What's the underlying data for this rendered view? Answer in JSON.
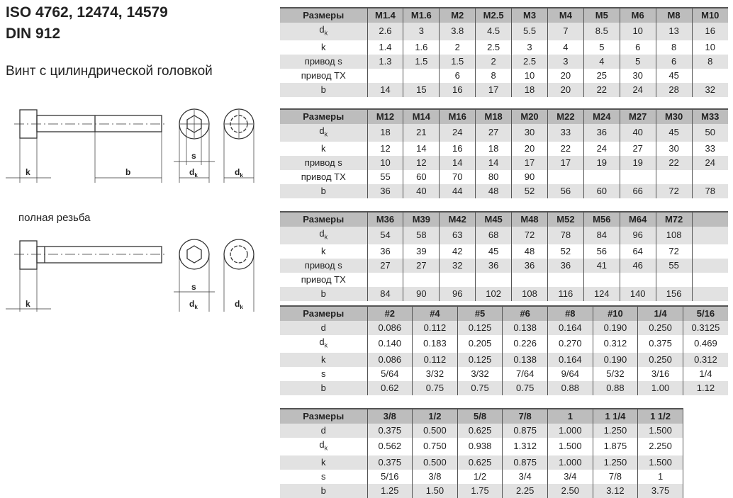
{
  "title_lines": [
    "ISO 4762, 12474, 14579",
    "DIN 912"
  ],
  "subtitle": "Винт с цилиндрической головкой",
  "full_thread_label": "полная резьба",
  "drawing_labels": {
    "k": "k",
    "b": "b",
    "s": "s",
    "dk_main": "d",
    "dk_sub": "k"
  },
  "tables": [
    {
      "header": [
        "Размеры",
        "M1.4",
        "M1.6",
        "M2",
        "M2.5",
        "M3",
        "M4",
        "M5",
        "M6",
        "M8",
        "M10"
      ],
      "rows": [
        {
          "label": "d",
          "sub": "k",
          "values": [
            "2.6",
            "3",
            "3.8",
            "4.5",
            "5.5",
            "7",
            "8.5",
            "10",
            "13",
            "16"
          ]
        },
        {
          "label": "k",
          "values": [
            "1.4",
            "1.6",
            "2",
            "2.5",
            "3",
            "4",
            "5",
            "6",
            "8",
            "10"
          ]
        },
        {
          "label": "привод s",
          "values": [
            "1.3",
            "1.5",
            "1.5",
            "2",
            "2.5",
            "3",
            "4",
            "5",
            "6",
            "8"
          ]
        },
        {
          "label": "привод TX",
          "values": [
            "",
            "",
            "6",
            "8",
            "10",
            "20",
            "25",
            "30",
            "45",
            ""
          ]
        },
        {
          "label": "b",
          "values": [
            "14",
            "15",
            "16",
            "17",
            "18",
            "20",
            "22",
            "24",
            "28",
            "32"
          ]
        }
      ]
    },
    {
      "header": [
        "Размеры",
        "M12",
        "M14",
        "M16",
        "M18",
        "M20",
        "M22",
        "M24",
        "M27",
        "M30",
        "M33"
      ],
      "rows": [
        {
          "label": "d",
          "sub": "k",
          "values": [
            "18",
            "21",
            "24",
            "27",
            "30",
            "33",
            "36",
            "40",
            "45",
            "50"
          ]
        },
        {
          "label": "k",
          "values": [
            "12",
            "14",
            "16",
            "18",
            "20",
            "22",
            "24",
            "27",
            "30",
            "33"
          ]
        },
        {
          "label": "привод s",
          "values": [
            "10",
            "12",
            "14",
            "14",
            "17",
            "17",
            "19",
            "19",
            "22",
            "24"
          ]
        },
        {
          "label": "привод TX",
          "values": [
            "55",
            "60",
            "70",
            "80",
            "90",
            "",
            "",
            "",
            "",
            ""
          ]
        },
        {
          "label": "b",
          "values": [
            "36",
            "40",
            "44",
            "48",
            "52",
            "56",
            "60",
            "66",
            "72",
            "78"
          ]
        }
      ]
    },
    {
      "header": [
        "Размеры",
        "M36",
        "M39",
        "M42",
        "M45",
        "M48",
        "M52",
        "M56",
        "M64",
        "M72",
        ""
      ],
      "rows": [
        {
          "label": "d",
          "sub": "k",
          "values": [
            "54",
            "58",
            "63",
            "68",
            "72",
            "78",
            "84",
            "96",
            "108",
            ""
          ]
        },
        {
          "label": "k",
          "values": [
            "36",
            "39",
            "42",
            "45",
            "48",
            "52",
            "56",
            "64",
            "72",
            ""
          ]
        },
        {
          "label": "привод s",
          "values": [
            "27",
            "27",
            "32",
            "36",
            "36",
            "36",
            "41",
            "46",
            "55",
            ""
          ]
        },
        {
          "label": "привод TX",
          "values": [
            "",
            "",
            "",
            "",
            "",
            "",
            "",
            "",
            "",
            ""
          ]
        },
        {
          "label": "b",
          "values": [
            "84",
            "90",
            "96",
            "102",
            "108",
            "116",
            "124",
            "140",
            "156",
            ""
          ]
        }
      ]
    },
    {
      "header": [
        "Размеры",
        "#2",
        "#4",
        "#5",
        "#6",
        "#8",
        "#10",
        "1/4",
        "5/16"
      ],
      "rows": [
        {
          "label": "d",
          "values": [
            "0.086",
            "0.112",
            "0.125",
            "0.138",
            "0.164",
            "0.190",
            "0.250",
            "0.3125"
          ]
        },
        {
          "label": "d",
          "sub": "k",
          "values": [
            "0.140",
            "0.183",
            "0.205",
            "0.226",
            "0.270",
            "0.312",
            "0.375",
            "0.469"
          ]
        },
        {
          "label": "k",
          "values": [
            "0.086",
            "0.112",
            "0.125",
            "0.138",
            "0.164",
            "0.190",
            "0.250",
            "0.312"
          ]
        },
        {
          "label": "s",
          "values": [
            "5/64",
            "3/32",
            "3/32",
            "7/64",
            "9/64",
            "5/32",
            "3/16",
            "1/4"
          ]
        },
        {
          "label": "b",
          "values": [
            "0.62",
            "0.75",
            "0.75",
            "0.75",
            "0.88",
            "0.88",
            "1.00",
            "1.12"
          ]
        }
      ]
    },
    {
      "header": [
        "Размеры",
        "3/8",
        "1/2",
        "5/8",
        "7/8",
        "1",
        "1 1/4",
        "1 1/2"
      ],
      "rows": [
        {
          "label": "d",
          "values": [
            "0.375",
            "0.500",
            "0.625",
            "0.875",
            "1.000",
            "1.250",
            "1.500"
          ]
        },
        {
          "label": "d",
          "sub": "k",
          "values": [
            "0.562",
            "0.750",
            "0.938",
            "1.312",
            "1.500",
            "1.875",
            "2.250"
          ]
        },
        {
          "label": "k",
          "values": [
            "0.375",
            "0.500",
            "0.625",
            "0.875",
            "1.000",
            "1.250",
            "1.500"
          ]
        },
        {
          "label": "s",
          "values": [
            "5/16",
            "3/8",
            "1/2",
            "3/4",
            "3/4",
            "7/8",
            "1"
          ]
        },
        {
          "label": "b",
          "values": [
            "1.25",
            "1.50",
            "1.75",
            "2.25",
            "2.50",
            "3.12",
            "3.75"
          ]
        }
      ]
    }
  ]
}
